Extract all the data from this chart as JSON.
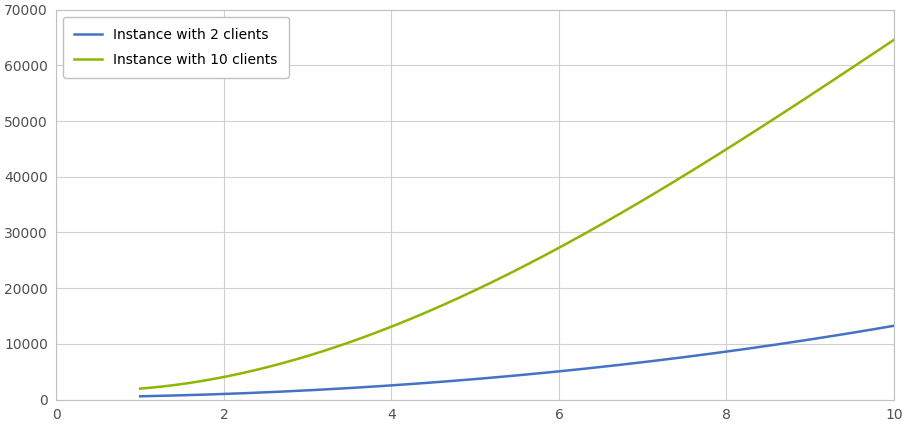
{
  "title": "",
  "x_label": "",
  "y_label": "",
  "xlim": [
    0,
    10
  ],
  "ylim": [
    0,
    70000
  ],
  "xticks": [
    0,
    2,
    4,
    6,
    8,
    10
  ],
  "yticks": [
    0,
    10000,
    20000,
    30000,
    40000,
    50000,
    60000,
    70000
  ],
  "series": [
    {
      "label": "Instance with 2 clients",
      "color": "#4472C4",
      "x": [
        1,
        2,
        3,
        4,
        5,
        6,
        7,
        8,
        9,
        10
      ],
      "y": [
        500,
        1100,
        1700,
        2500,
        3600,
        5000,
        6700,
        8700,
        10800,
        13200
      ]
    },
    {
      "label": "Instance with 10 clients",
      "color": "#8db600",
      "x": [
        1,
        2,
        3,
        4,
        5,
        6,
        7,
        8,
        9,
        10
      ],
      "y": [
        2000,
        4200,
        7500,
        13000,
        19500,
        27500,
        36500,
        44500,
        54000,
        65000
      ]
    }
  ],
  "grid_color": "#d0d0d0",
  "background_color": "#ffffff",
  "plot_background": "#ffffff",
  "legend_loc": "upper left",
  "figsize": [
    9.07,
    4.26
  ],
  "dpi": 100,
  "spine_color": "#c0c0c0"
}
